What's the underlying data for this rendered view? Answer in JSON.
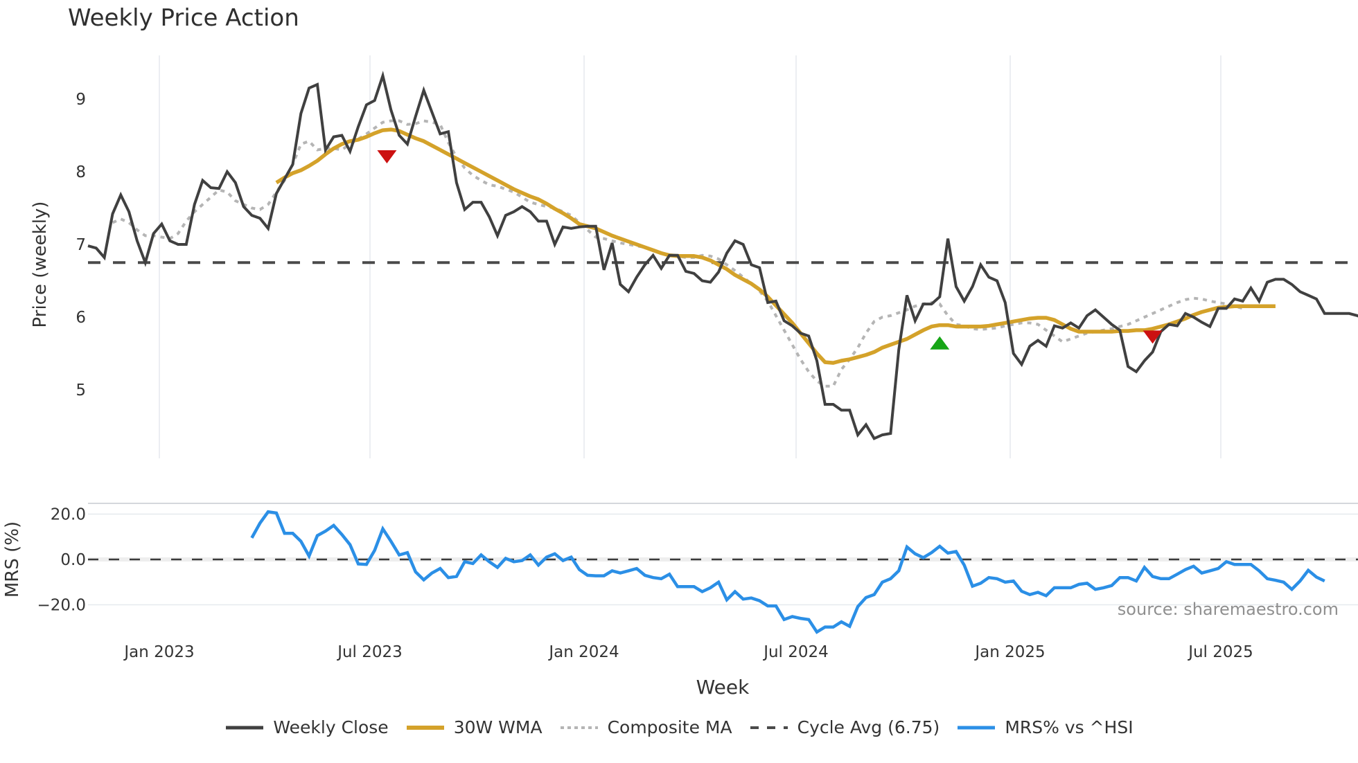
{
  "title": "Weekly Price Action",
  "source_note": "source: sharemaestro.com",
  "axes": {
    "price_ylabel": "Price (weekly)",
    "mrs_ylabel": "MRS (%)",
    "xlabel": "Week",
    "price_yticks": [
      "9",
      "8",
      "7",
      "6",
      "5"
    ],
    "mrs_yticks": [
      "20.0",
      "0.0",
      "−20.0"
    ],
    "xticks": [
      "Jan 2023",
      "Jul 2023",
      "Jan 2024",
      "Jul 2024",
      "Jan 2025",
      "Jul 2025"
    ]
  },
  "legend": {
    "items": [
      {
        "label": "Weekly Close",
        "color": "#404040",
        "style": "solid"
      },
      {
        "label": "30W WMA",
        "color": "#d4a22a",
        "style": "solid"
      },
      {
        "label": "Composite MA",
        "color": "#b5b5b5",
        "style": "dotted"
      },
      {
        "label": "Cycle Avg (6.75)",
        "color": "#4a4a4a",
        "style": "dashed"
      },
      {
        "label": "MRS% vs ^HSI",
        "color": "#2b8fe6",
        "style": "solid"
      }
    ]
  },
  "colors": {
    "close": "#404040",
    "wma": "#d4a22a",
    "composite": "#b5b5b5",
    "cycle": "#4a4a4a",
    "mrs": "#2b8fe6",
    "sell_marker": "#cc1111",
    "buy_marker": "#16a516",
    "grid": "#e6e9ee"
  },
  "chart_data": [
    {
      "type": "line",
      "title": "Weekly Price Action",
      "xlabel": "Week",
      "ylabel": "Price (weekly)",
      "ylim": [
        4.1,
        9.6
      ],
      "x_tick_labels": [
        "Jan 2023",
        "Jul 2023",
        "Jan 2024",
        "Jul 2024",
        "Jan 2025",
        "Jul 2025"
      ],
      "x_start": "Nov 2022 (approx.)",
      "x_step": "1 week",
      "cycle_avg": 6.75,
      "series": [
        {
          "name": "Weekly Close",
          "values": [
            6.98,
            6.95,
            6.82,
            7.42,
            7.68,
            7.45,
            7.05,
            6.75,
            7.15,
            7.28,
            7.05,
            7.0,
            7.0,
            7.55,
            7.88,
            7.78,
            7.77,
            8.0,
            7.85,
            7.52,
            7.4,
            7.36,
            7.22,
            7.7,
            7.9,
            8.1,
            8.8,
            9.15,
            9.2,
            8.3,
            8.48,
            8.5,
            8.28,
            8.62,
            8.92,
            8.98,
            9.32,
            8.85,
            8.5,
            8.38,
            8.76,
            9.12,
            8.82,
            8.52,
            8.55,
            7.85,
            7.48,
            7.58,
            7.58,
            7.38,
            7.12,
            7.4,
            7.45,
            7.52,
            7.45,
            7.32,
            7.32,
            7.0,
            7.24,
            7.22,
            7.24,
            7.25,
            7.25,
            6.65,
            7.02,
            6.45,
            6.35,
            6.55,
            6.72,
            6.85,
            6.67,
            6.85,
            6.85,
            6.63,
            6.6,
            6.5,
            6.48,
            6.62,
            6.88,
            7.05,
            7.0,
            6.72,
            6.68,
            6.2,
            6.22,
            5.95,
            5.88,
            5.78,
            5.74,
            5.4,
            4.8,
            4.8,
            4.72,
            4.72,
            4.38,
            4.52,
            4.33,
            4.38,
            4.4,
            5.55,
            6.3,
            5.95,
            6.18,
            6.18,
            6.28,
            7.08,
            6.42,
            6.22,
            6.42,
            6.72,
            6.55,
            6.5,
            6.2,
            5.5,
            5.35,
            5.6,
            5.68,
            5.6,
            5.88,
            5.85,
            5.92,
            5.85,
            6.02,
            6.1,
            6.0,
            5.9,
            5.82,
            5.32,
            5.25,
            5.4,
            5.52,
            5.8,
            5.9,
            5.88,
            6.05,
            6.0,
            5.93,
            5.87,
            6.12,
            6.12,
            6.25,
            6.22,
            6.4,
            6.22,
            6.48,
            6.52,
            6.52,
            6.45,
            6.35,
            6.3,
            6.25,
            6.05,
            6.05,
            6.05,
            6.05,
            6.02,
            5.97
          ]
        },
        {
          "name": "30W WMA",
          "start_index": 23,
          "values": [
            7.85,
            7.92,
            7.98,
            8.02,
            8.08,
            8.15,
            8.24,
            8.32,
            8.38,
            8.42,
            8.44,
            8.48,
            8.53,
            8.57,
            8.58,
            8.56,
            8.51,
            8.46,
            8.42,
            8.36,
            8.3,
            8.24,
            8.18,
            8.12,
            8.06,
            8.0,
            7.94,
            7.88,
            7.82,
            7.76,
            7.71,
            7.66,
            7.62,
            7.56,
            7.49,
            7.43,
            7.36,
            7.28,
            7.25,
            7.22,
            7.17,
            7.12,
            7.08,
            7.04,
            7.0,
            6.96,
            6.92,
            6.88,
            6.85,
            6.84,
            6.84,
            6.84,
            6.82,
            6.78,
            6.72,
            6.66,
            6.58,
            6.52,
            6.46,
            6.38,
            6.28,
            6.16,
            6.04,
            5.92,
            5.78,
            5.64,
            5.5,
            5.38,
            5.37,
            5.4,
            5.42,
            5.45,
            5.48,
            5.52,
            5.58,
            5.62,
            5.66,
            5.7,
            5.76,
            5.82,
            5.87,
            5.89,
            5.89,
            5.87,
            5.87,
            5.87,
            5.87,
            5.88,
            5.9,
            5.92,
            5.94,
            5.96,
            5.98,
            5.99,
            5.99,
            5.96,
            5.9,
            5.84,
            5.8,
            5.8,
            5.8,
            5.8,
            5.8,
            5.81,
            5.81,
            5.82,
            5.82,
            5.84,
            5.87,
            5.9,
            5.94,
            5.98,
            6.03,
            6.07,
            6.1,
            6.13,
            6.14,
            6.15,
            6.15,
            6.15,
            6.15,
            6.15,
            6.15
          ]
        },
        {
          "name": "Composite MA",
          "start_index": 3,
          "values": [
            7.3,
            7.35,
            7.3,
            7.2,
            7.12,
            7.12,
            7.1,
            7.08,
            7.15,
            7.32,
            7.45,
            7.55,
            7.65,
            7.75,
            7.72,
            7.6,
            7.55,
            7.5,
            7.48,
            7.55,
            7.72,
            7.88,
            8.1,
            8.38,
            8.42,
            8.3,
            8.32,
            8.32,
            8.3,
            8.38,
            8.45,
            8.52,
            8.6,
            8.68,
            8.7,
            8.7,
            8.65,
            8.66,
            8.7,
            8.68,
            8.65,
            8.4,
            8.2,
            8.05,
            7.95,
            7.88,
            7.82,
            7.8,
            7.76,
            7.72,
            7.65,
            7.58,
            7.55,
            7.52,
            7.5,
            7.45,
            7.4,
            7.3,
            7.2,
            7.1,
            7.08,
            7.05,
            7.02,
            7.0,
            6.98,
            6.96,
            6.92,
            6.88,
            6.86,
            6.84,
            6.82,
            6.82,
            6.85,
            6.84,
            6.8,
            6.72,
            6.64,
            6.55,
            6.46,
            6.36,
            6.22,
            6.02,
            5.82,
            5.62,
            5.42,
            5.25,
            5.12,
            5.05,
            5.05,
            5.28,
            5.42,
            5.58,
            5.78,
            5.94,
            6.0,
            6.02,
            6.06,
            6.1,
            6.15,
            6.18,
            6.2,
            6.18,
            6.02,
            5.9,
            5.88,
            5.84,
            5.83,
            5.84,
            5.85,
            5.88,
            5.9,
            5.92,
            5.92,
            5.9,
            5.82,
            5.74,
            5.66,
            5.7,
            5.74,
            5.78,
            5.8,
            5.82,
            5.84,
            5.87,
            5.9,
            5.95,
            6.0,
            6.05,
            6.1,
            6.15,
            6.2,
            6.24,
            6.26,
            6.25,
            6.22,
            6.2,
            6.18,
            6.15,
            6.12
          ]
        }
      ],
      "markers": [
        {
          "type": "sell",
          "shape": "triangle-down",
          "index": 36.5,
          "value": 8.2
        },
        {
          "type": "buy",
          "shape": "triangle-up",
          "index": 104,
          "value": 5.64
        },
        {
          "type": "sell",
          "shape": "triangle-down",
          "index": 130,
          "value": 5.72
        }
      ]
    },
    {
      "type": "line",
      "title": "",
      "xlabel": "Week",
      "ylabel": "MRS (%)",
      "ylim": [
        -33,
        24
      ],
      "reference_line": 0.0,
      "series": [
        {
          "name": "MRS% vs ^HSI",
          "start_index": 20,
          "values": [
            9.5,
            16,
            21,
            20.5,
            11.5,
            11.5,
            8,
            1.5,
            10.5,
            12.5,
            15,
            11,
            6.5,
            -2,
            -2.2,
            4,
            13.5,
            8,
            2,
            3,
            -5.5,
            -9,
            -6,
            -4,
            -8,
            -7.5,
            -1,
            -1.8,
            2,
            -1,
            -3.5,
            0.5,
            -1,
            -0.5,
            2,
            -2.5,
            1,
            2.5,
            -0.5,
            1,
            -4.5,
            -7,
            -7.2,
            -7.2,
            -5,
            -6,
            -5,
            -4,
            -7,
            -8,
            -8.5,
            -6.5,
            -12,
            -12,
            -12,
            -14.2,
            -12.5,
            -10,
            -17.8,
            -14.2,
            -17.5,
            -17,
            -18.2,
            -20.5,
            -20.5,
            -26.5,
            -25.2,
            -26,
            -26.5,
            -32,
            -29.8,
            -29.8,
            -27.5,
            -29.5,
            -20.8,
            -16.8,
            -15.5,
            -10,
            -8.5,
            -5,
            5.5,
            2.5,
            0.8,
            3,
            5.8,
            2.8,
            3.5,
            -2.5,
            -11.8,
            -10.5,
            -8,
            -8.5,
            -10,
            -9.5,
            -14,
            -15.5,
            -14.5,
            -16,
            -12.5,
            -12.5,
            -12.5,
            -11,
            -10.5,
            -13.2,
            -12.5,
            -11.5,
            -8,
            -8,
            -9.5,
            -3.5,
            -7.5,
            -8.5,
            -8.5,
            -6.5,
            -4.5,
            -3,
            -6,
            -5,
            -4,
            -1,
            -2.2,
            -2.2,
            -2.2,
            -5,
            -8.5,
            -9.2,
            -10,
            -13.2,
            -9.5,
            -4.8,
            -7.8,
            -9.5
          ]
        }
      ]
    }
  ]
}
